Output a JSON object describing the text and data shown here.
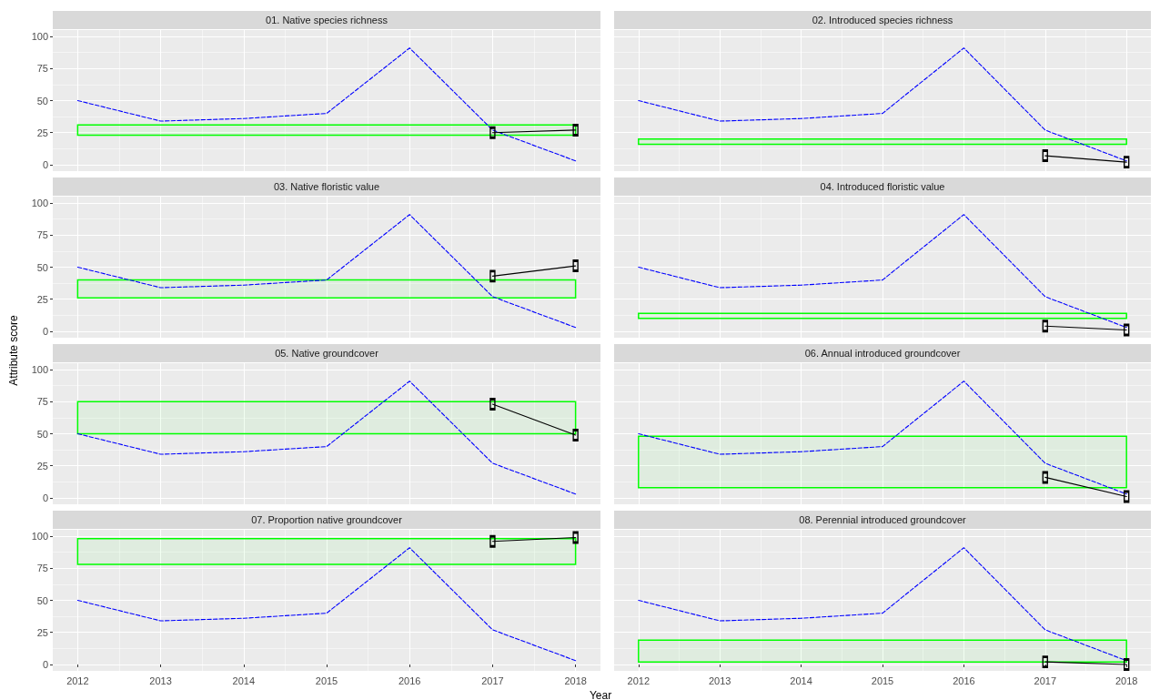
{
  "chart_data": [
    {
      "type": "line",
      "title": "01. Native species richness",
      "x": [
        2012,
        2013,
        2014,
        2015,
        2016,
        2017,
        2018
      ],
      "xlim": [
        2011.7,
        2018.3
      ],
      "xticks": [
        2012,
        2013,
        2014,
        2015,
        2016,
        2017,
        2018
      ],
      "ylim": [
        -5,
        105
      ],
      "yticks": [
        0,
        25,
        50,
        75,
        100
      ],
      "grid": true,
      "tick_labels": "y",
      "series": [
        {
          "color": "#0000ff",
          "line_style": "dashed",
          "marker": "none",
          "values": [
            50,
            34,
            36,
            40,
            91,
            27,
            3
          ]
        },
        {
          "color": "#000000",
          "line_style": "solid",
          "marker": "square",
          "values": [
            null,
            null,
            null,
            null,
            null,
            25,
            27
          ]
        }
      ],
      "bands": [
        {
          "axis": "y",
          "from": 23,
          "to": 31,
          "color": "#00ff00"
        }
      ]
    },
    {
      "type": "line",
      "title": "02. Introduced species richness",
      "x": [
        2012,
        2013,
        2014,
        2015,
        2016,
        2017,
        2018
      ],
      "xlim": [
        2011.7,
        2018.3
      ],
      "xticks": [
        2012,
        2013,
        2014,
        2015,
        2016,
        2017,
        2018
      ],
      "ylim": [
        -5,
        105
      ],
      "yticks": [
        0,
        25,
        50,
        75,
        100
      ],
      "grid": true,
      "tick_labels": false,
      "series": [
        {
          "color": "#0000ff",
          "line_style": "dashed",
          "marker": "none",
          "values": [
            50,
            34,
            36,
            40,
            91,
            27,
            3
          ]
        },
        {
          "color": "#000000",
          "line_style": "solid",
          "marker": "square",
          "values": [
            null,
            null,
            null,
            null,
            null,
            7,
            2
          ]
        }
      ],
      "bands": [
        {
          "axis": "y",
          "from": 16,
          "to": 20,
          "color": "#00ff00"
        }
      ]
    },
    {
      "type": "line",
      "title": "03. Native floristic value",
      "x": [
        2012,
        2013,
        2014,
        2015,
        2016,
        2017,
        2018
      ],
      "xlim": [
        2011.7,
        2018.3
      ],
      "xticks": [
        2012,
        2013,
        2014,
        2015,
        2016,
        2017,
        2018
      ],
      "ylim": [
        -5,
        105
      ],
      "yticks": [
        0,
        25,
        50,
        75,
        100
      ],
      "grid": true,
      "tick_labels": "y",
      "series": [
        {
          "color": "#0000ff",
          "line_style": "dashed",
          "marker": "none",
          "values": [
            50,
            34,
            36,
            40,
            91,
            27,
            3
          ]
        },
        {
          "color": "#000000",
          "line_style": "solid",
          "marker": "square",
          "values": [
            null,
            null,
            null,
            null,
            null,
            43,
            51
          ]
        }
      ],
      "bands": [
        {
          "axis": "y",
          "from": 26,
          "to": 40,
          "color": "#00ff00"
        }
      ]
    },
    {
      "type": "line",
      "title": "04. Introduced floristic value",
      "x": [
        2012,
        2013,
        2014,
        2015,
        2016,
        2017,
        2018
      ],
      "xlim": [
        2011.7,
        2018.3
      ],
      "xticks": [
        2012,
        2013,
        2014,
        2015,
        2016,
        2017,
        2018
      ],
      "ylim": [
        -5,
        105
      ],
      "yticks": [
        0,
        25,
        50,
        75,
        100
      ],
      "grid": true,
      "tick_labels": false,
      "series": [
        {
          "color": "#0000ff",
          "line_style": "dashed",
          "marker": "none",
          "values": [
            50,
            34,
            36,
            40,
            91,
            27,
            3
          ]
        },
        {
          "color": "#000000",
          "line_style": "solid",
          "marker": "square",
          "values": [
            null,
            null,
            null,
            null,
            null,
            4,
            1
          ]
        }
      ],
      "bands": [
        {
          "axis": "y",
          "from": 10,
          "to": 14,
          "color": "#00ff00"
        }
      ]
    },
    {
      "type": "line",
      "title": "05. Native groundcover",
      "ylabel": "Attribute score",
      "x": [
        2012,
        2013,
        2014,
        2015,
        2016,
        2017,
        2018
      ],
      "xlim": [
        2011.7,
        2018.3
      ],
      "xticks": [
        2012,
        2013,
        2014,
        2015,
        2016,
        2017,
        2018
      ],
      "ylim": [
        -5,
        105
      ],
      "yticks": [
        0,
        25,
        50,
        75,
        100
      ],
      "grid": true,
      "tick_labels": "y",
      "series": [
        {
          "color": "#0000ff",
          "line_style": "dashed",
          "marker": "none",
          "values": [
            50,
            34,
            36,
            40,
            91,
            27,
            3
          ]
        },
        {
          "color": "#000000",
          "line_style": "solid",
          "marker": "square",
          "values": [
            null,
            null,
            null,
            null,
            null,
            73,
            49
          ]
        }
      ],
      "bands": [
        {
          "axis": "y",
          "from": 50,
          "to": 75,
          "color": "#00ff00"
        }
      ]
    },
    {
      "type": "line",
      "title": "06. Annual introduced groundcover",
      "x": [
        2012,
        2013,
        2014,
        2015,
        2016,
        2017,
        2018
      ],
      "xlim": [
        2011.7,
        2018.3
      ],
      "xticks": [
        2012,
        2013,
        2014,
        2015,
        2016,
        2017,
        2018
      ],
      "ylim": [
        -5,
        105
      ],
      "yticks": [
        0,
        25,
        50,
        75,
        100
      ],
      "grid": true,
      "tick_labels": false,
      "series": [
        {
          "color": "#0000ff",
          "line_style": "dashed",
          "marker": "none",
          "values": [
            50,
            34,
            36,
            40,
            91,
            27,
            3
          ]
        },
        {
          "color": "#000000",
          "line_style": "solid",
          "marker": "square",
          "values": [
            null,
            null,
            null,
            null,
            null,
            16,
            1
          ]
        }
      ],
      "bands": [
        {
          "axis": "y",
          "from": 8,
          "to": 48,
          "color": "#00ff00"
        }
      ]
    },
    {
      "type": "line",
      "title": "07. Proportion native groundcover",
      "xlabel": "Year",
      "x": [
        2012,
        2013,
        2014,
        2015,
        2016,
        2017,
        2018
      ],
      "xlim": [
        2011.7,
        2018.3
      ],
      "xticks": [
        2012,
        2013,
        2014,
        2015,
        2016,
        2017,
        2018
      ],
      "ylim": [
        -5,
        105
      ],
      "yticks": [
        0,
        25,
        50,
        75,
        100
      ],
      "grid": true,
      "series": [
        {
          "color": "#0000ff",
          "line_style": "dashed",
          "marker": "none",
          "values": [
            50,
            34,
            36,
            40,
            91,
            27,
            3
          ]
        },
        {
          "color": "#000000",
          "line_style": "solid",
          "marker": "square",
          "values": [
            null,
            null,
            null,
            null,
            null,
            96,
            99
          ]
        }
      ],
      "bands": [
        {
          "axis": "y",
          "from": 78,
          "to": 98,
          "color": "#00ff00"
        }
      ]
    },
    {
      "type": "line",
      "title": "08. Perennial introduced groundcover",
      "x": [
        2012,
        2013,
        2014,
        2015,
        2016,
        2017,
        2018
      ],
      "xlim": [
        2011.7,
        2018.3
      ],
      "xticks": [
        2012,
        2013,
        2014,
        2015,
        2016,
        2017,
        2018
      ],
      "ylim": [
        -5,
        105
      ],
      "yticks": [
        0,
        25,
        50,
        75,
        100
      ],
      "grid": true,
      "tick_labels": "x",
      "series": [
        {
          "color": "#0000ff",
          "line_style": "dashed",
          "marker": "none",
          "values": [
            50,
            34,
            36,
            40,
            91,
            27,
            3
          ]
        },
        {
          "color": "#000000",
          "line_style": "solid",
          "marker": "square",
          "values": [
            null,
            null,
            null,
            null,
            null,
            2,
            0
          ]
        }
      ],
      "bands": [
        {
          "axis": "y",
          "from": 2,
          "to": 19,
          "color": "#00ff00"
        }
      ]
    }
  ]
}
